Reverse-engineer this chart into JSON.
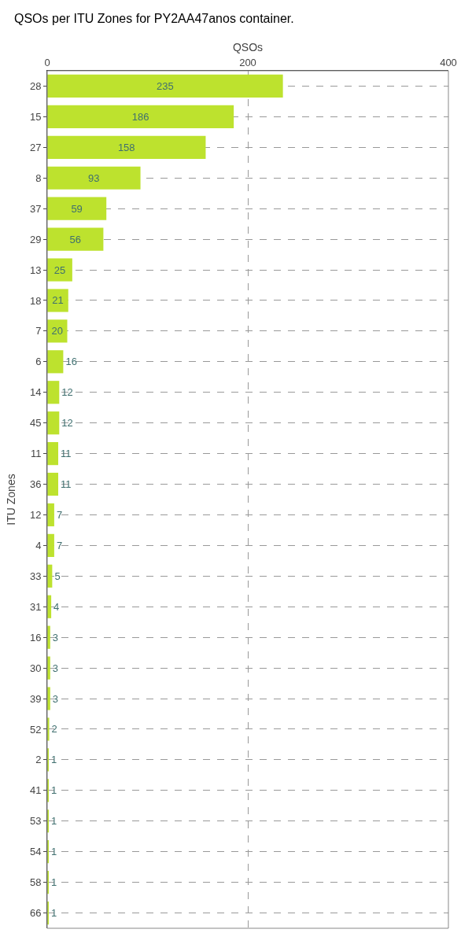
{
  "chart_data": {
    "type": "bar",
    "orientation": "horizontal",
    "title": "QSOs per ITU Zones for PY2AA47anos container.",
    "xlabel": "QSOs",
    "ylabel": "ITU Zones",
    "categories": [
      "28",
      "15",
      "27",
      "8",
      "37",
      "29",
      "13",
      "18",
      "7",
      "6",
      "14",
      "45",
      "11",
      "36",
      "12",
      "4",
      "33",
      "31",
      "16",
      "30",
      "39",
      "52",
      "2",
      "41",
      "53",
      "54",
      "58",
      "66"
    ],
    "values": [
      235,
      186,
      158,
      93,
      59,
      56,
      25,
      21,
      20,
      16,
      12,
      12,
      11,
      11,
      7,
      7,
      5,
      4,
      3,
      3,
      3,
      2,
      1,
      1,
      1,
      1,
      1,
      1
    ],
    "color": "#bde22e",
    "xlim": [
      0,
      400
    ],
    "xticks": [
      0,
      200,
      400
    ],
    "grid": true,
    "data_labels": true
  }
}
